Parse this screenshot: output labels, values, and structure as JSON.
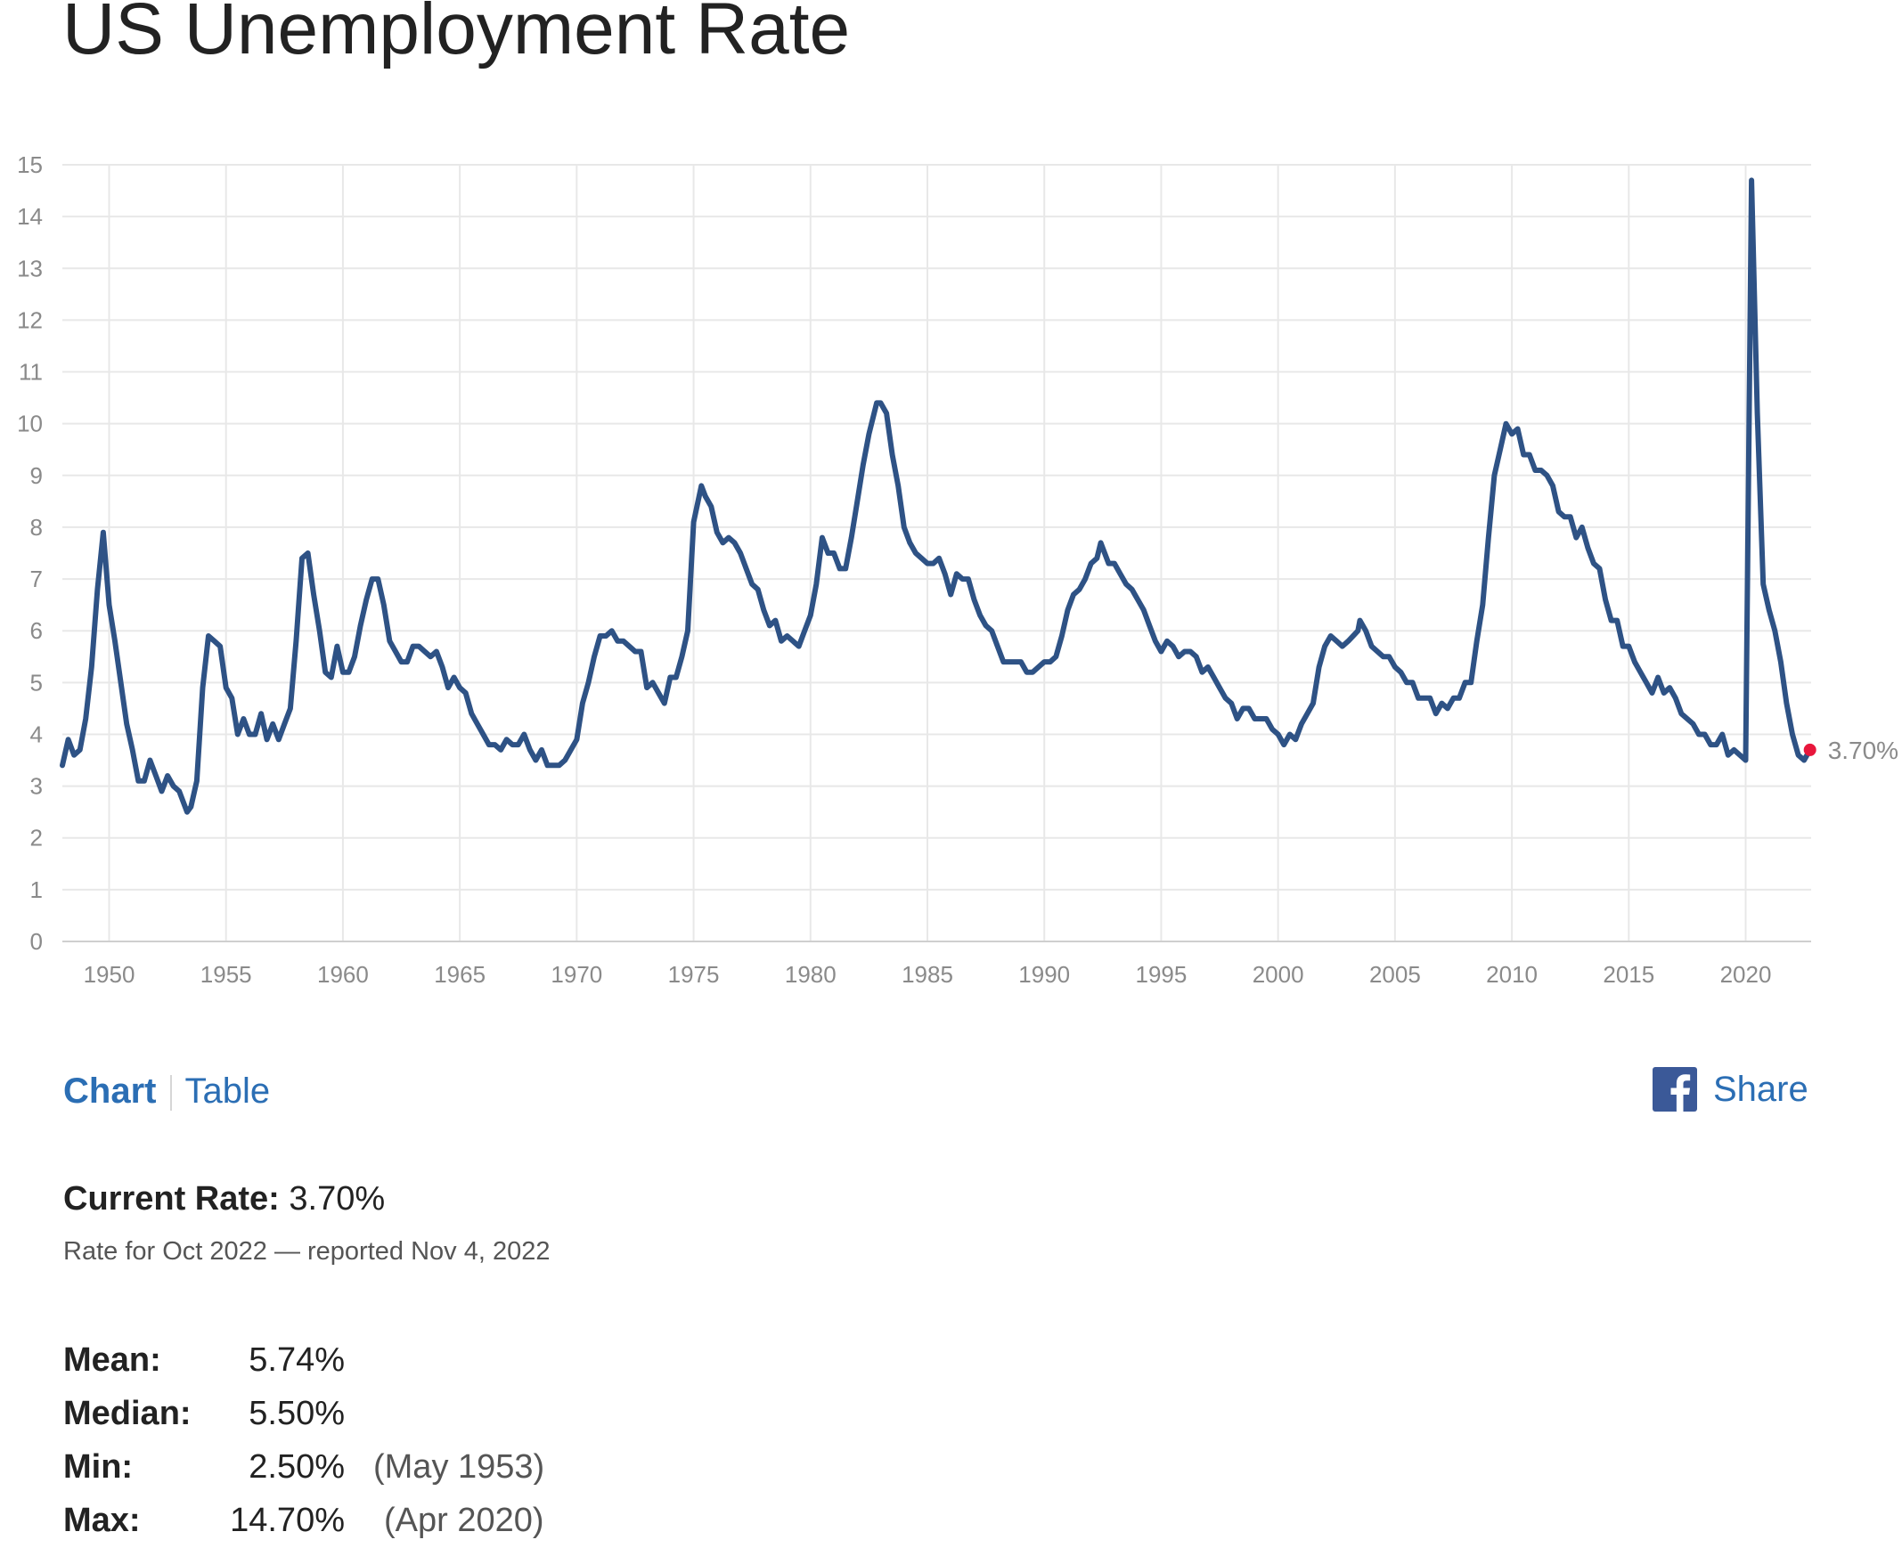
{
  "page": {
    "title": "US Unemployment Rate"
  },
  "chart_data": {
    "type": "line",
    "title": "",
    "xlabel": "",
    "ylabel": "",
    "ylim": [
      0,
      15
    ],
    "xlim": [
      1948.0,
      2022.8
    ],
    "grid": true,
    "y_ticks": [
      "0",
      "1",
      "2",
      "3",
      "4",
      "5",
      "6",
      "7",
      "8",
      "9",
      "10",
      "11",
      "12",
      "13",
      "14",
      "15"
    ],
    "x_ticks": [
      "1950",
      "1955",
      "1960",
      "1965",
      "1970",
      "1975",
      "1980",
      "1985",
      "1990",
      "1995",
      "2000",
      "2005",
      "2010",
      "2015",
      "2020"
    ],
    "end_label": "3.70%",
    "colors": {
      "line": "#2e5285",
      "marker": "#e8173c",
      "grid": "#e8e8e8",
      "tick_text": "#8a8a8a"
    },
    "series": [
      {
        "x": [
          "1948-01",
          "1948-04",
          "1948-07",
          "1948-10",
          "1949-01",
          "1949-04",
          "1949-07",
          "1949-10",
          "1950-01",
          "1950-04",
          "1950-07",
          "1950-10",
          "1951-01",
          "1951-04",
          "1951-07",
          "1951-10",
          "1952-01",
          "1952-04",
          "1952-07",
          "1952-10",
          "1953-01",
          "1953-05",
          "1953-07",
          "1953-10",
          "1954-01",
          "1954-04",
          "1954-07",
          "1954-10",
          "1955-01",
          "1955-04",
          "1955-07",
          "1955-10",
          "1956-01",
          "1956-04",
          "1956-07",
          "1956-10",
          "1957-01",
          "1957-04",
          "1957-07",
          "1957-10",
          "1958-01",
          "1958-04",
          "1958-07",
          "1958-10",
          "1959-01",
          "1959-04",
          "1959-07",
          "1959-10",
          "1960-01",
          "1960-04",
          "1960-07",
          "1960-10",
          "1961-01",
          "1961-04",
          "1961-07",
          "1961-10",
          "1962-01",
          "1962-04",
          "1962-07",
          "1962-10",
          "1963-01",
          "1963-04",
          "1963-07",
          "1963-10",
          "1964-01",
          "1964-04",
          "1964-07",
          "1964-10",
          "1965-01",
          "1965-04",
          "1965-07",
          "1965-10",
          "1966-01",
          "1966-04",
          "1966-07",
          "1966-10",
          "1967-01",
          "1967-04",
          "1967-07",
          "1967-10",
          "1968-01",
          "1968-04",
          "1968-07",
          "1968-10",
          "1969-01",
          "1969-04",
          "1969-07",
          "1969-10",
          "1970-01",
          "1970-04",
          "1970-07",
          "1970-10",
          "1971-01",
          "1971-04",
          "1971-07",
          "1971-10",
          "1972-01",
          "1972-04",
          "1972-07",
          "1972-10",
          "1973-01",
          "1973-04",
          "1973-07",
          "1973-10",
          "1974-01",
          "1974-04",
          "1974-07",
          "1974-10",
          "1975-01",
          "1975-05",
          "1975-07",
          "1975-10",
          "1976-01",
          "1976-04",
          "1976-07",
          "1976-10",
          "1977-01",
          "1977-04",
          "1977-07",
          "1977-10",
          "1978-01",
          "1978-04",
          "1978-07",
          "1978-10",
          "1979-01",
          "1979-04",
          "1979-07",
          "1979-10",
          "1980-01",
          "1980-04",
          "1980-07",
          "1980-10",
          "1981-01",
          "1981-04",
          "1981-07",
          "1981-10",
          "1982-01",
          "1982-04",
          "1982-07",
          "1982-11",
          "1983-01",
          "1983-04",
          "1983-07",
          "1983-10",
          "1984-01",
          "1984-04",
          "1984-07",
          "1984-10",
          "1985-01",
          "1985-04",
          "1985-07",
          "1985-10",
          "1986-01",
          "1986-04",
          "1986-07",
          "1986-10",
          "1987-01",
          "1987-04",
          "1987-07",
          "1987-10",
          "1988-01",
          "1988-04",
          "1988-07",
          "1988-10",
          "1989-01",
          "1989-04",
          "1989-07",
          "1989-10",
          "1990-01",
          "1990-04",
          "1990-07",
          "1990-10",
          "1991-01",
          "1991-04",
          "1991-07",
          "1991-10",
          "1992-01",
          "1992-04",
          "1992-06",
          "1992-10",
          "1993-01",
          "1993-04",
          "1993-07",
          "1993-10",
          "1994-01",
          "1994-04",
          "1994-07",
          "1994-10",
          "1995-01",
          "1995-04",
          "1995-07",
          "1995-10",
          "1996-01",
          "1996-04",
          "1996-07",
          "1996-10",
          "1997-01",
          "1997-04",
          "1997-07",
          "1997-10",
          "1998-01",
          "1998-04",
          "1998-07",
          "1998-10",
          "1999-01",
          "1999-04",
          "1999-07",
          "1999-10",
          "2000-01",
          "2000-04",
          "2000-07",
          "2000-10",
          "2001-01",
          "2001-04",
          "2001-07",
          "2001-10",
          "2002-01",
          "2002-04",
          "2002-07",
          "2002-10",
          "2003-01",
          "2003-06",
          "2003-07",
          "2003-10",
          "2004-01",
          "2004-04",
          "2004-07",
          "2004-10",
          "2005-01",
          "2005-04",
          "2005-07",
          "2005-10",
          "2006-01",
          "2006-04",
          "2006-07",
          "2006-10",
          "2007-01",
          "2007-04",
          "2007-07",
          "2007-10",
          "2008-01",
          "2008-04",
          "2008-07",
          "2008-10",
          "2009-01",
          "2009-04",
          "2009-07",
          "2009-10",
          "2010-01",
          "2010-04",
          "2010-07",
          "2010-10",
          "2011-01",
          "2011-04",
          "2011-07",
          "2011-10",
          "2012-01",
          "2012-04",
          "2012-07",
          "2012-10",
          "2013-01",
          "2013-04",
          "2013-07",
          "2013-10",
          "2014-01",
          "2014-04",
          "2014-07",
          "2014-10",
          "2015-01",
          "2015-04",
          "2015-07",
          "2015-10",
          "2016-01",
          "2016-04",
          "2016-07",
          "2016-10",
          "2017-01",
          "2017-04",
          "2017-07",
          "2017-10",
          "2018-01",
          "2018-04",
          "2018-07",
          "2018-10",
          "2019-01",
          "2019-04",
          "2019-07",
          "2019-10",
          "2020-01",
          "2020-04",
          "2020-07",
          "2020-10",
          "2021-01",
          "2021-04",
          "2021-07",
          "2021-10",
          "2022-01",
          "2022-04",
          "2022-07",
          "2022-10"
        ],
        "y": [
          3.4,
          3.9,
          3.6,
          3.7,
          4.3,
          5.3,
          6.8,
          7.9,
          6.5,
          5.8,
          5.0,
          4.2,
          3.7,
          3.1,
          3.1,
          3.5,
          3.2,
          2.9,
          3.2,
          3.0,
          2.9,
          2.5,
          2.6,
          3.1,
          4.9,
          5.9,
          5.8,
          5.7,
          4.9,
          4.7,
          4.0,
          4.3,
          4.0,
          4.0,
          4.4,
          3.9,
          4.2,
          3.9,
          4.2,
          4.5,
          5.8,
          7.4,
          7.5,
          6.7,
          6.0,
          5.2,
          5.1,
          5.7,
          5.2,
          5.2,
          5.5,
          6.1,
          6.6,
          7.0,
          7.0,
          6.5,
          5.8,
          5.6,
          5.4,
          5.4,
          5.7,
          5.7,
          5.6,
          5.5,
          5.6,
          5.3,
          4.9,
          5.1,
          4.9,
          4.8,
          4.4,
          4.2,
          4.0,
          3.8,
          3.8,
          3.7,
          3.9,
          3.8,
          3.8,
          4.0,
          3.7,
          3.5,
          3.7,
          3.4,
          3.4,
          3.4,
          3.5,
          3.7,
          3.9,
          4.6,
          5.0,
          5.5,
          5.9,
          5.9,
          6.0,
          5.8,
          5.8,
          5.7,
          5.6,
          5.6,
          4.9,
          5.0,
          4.8,
          4.6,
          5.1,
          5.1,
          5.5,
          6.0,
          8.1,
          8.8,
          8.6,
          8.4,
          7.9,
          7.7,
          7.8,
          7.7,
          7.5,
          7.2,
          6.9,
          6.8,
          6.4,
          6.1,
          6.2,
          5.8,
          5.9,
          5.8,
          5.7,
          6.0,
          6.3,
          6.9,
          7.8,
          7.5,
          7.5,
          7.2,
          7.2,
          7.8,
          8.5,
          9.2,
          9.8,
          10.4,
          10.4,
          10.2,
          9.4,
          8.8,
          8.0,
          7.7,
          7.5,
          7.4,
          7.3,
          7.3,
          7.4,
          7.1,
          6.7,
          7.1,
          7.0,
          7.0,
          6.6,
          6.3,
          6.1,
          6.0,
          5.7,
          5.4,
          5.4,
          5.4,
          5.4,
          5.2,
          5.2,
          5.3,
          5.4,
          5.4,
          5.5,
          5.9,
          6.4,
          6.7,
          6.8,
          7.0,
          7.3,
          7.4,
          7.7,
          7.3,
          7.3,
          7.1,
          6.9,
          6.8,
          6.6,
          6.4,
          6.1,
          5.8,
          5.6,
          5.8,
          5.7,
          5.5,
          5.6,
          5.6,
          5.5,
          5.2,
          5.3,
          5.1,
          4.9,
          4.7,
          4.6,
          4.3,
          4.5,
          4.5,
          4.3,
          4.3,
          4.3,
          4.1,
          4.0,
          3.8,
          4.0,
          3.9,
          4.2,
          4.4,
          4.6,
          5.3,
          5.7,
          5.9,
          5.8,
          5.7,
          5.8,
          6.0,
          6.2,
          6.0,
          5.7,
          5.6,
          5.5,
          5.5,
          5.3,
          5.2,
          5.0,
          5.0,
          4.7,
          4.7,
          4.7,
          4.4,
          4.6,
          4.5,
          4.7,
          4.7,
          5.0,
          5.0,
          5.8,
          6.5,
          7.8,
          9.0,
          9.5,
          10.0,
          9.8,
          9.9,
          9.4,
          9.4,
          9.1,
          9.1,
          9.0,
          8.8,
          8.3,
          8.2,
          8.2,
          7.8,
          8.0,
          7.6,
          7.3,
          7.2,
          6.6,
          6.2,
          6.2,
          5.7,
          5.7,
          5.4,
          5.2,
          5.0,
          4.8,
          5.1,
          4.8,
          4.9,
          4.7,
          4.4,
          4.3,
          4.2,
          4.0,
          4.0,
          3.8,
          3.8,
          4.0,
          3.6,
          3.7,
          3.6,
          3.5,
          14.7,
          10.2,
          6.9,
          6.4,
          6.0,
          5.4,
          4.6,
          4.0,
          3.6,
          3.5,
          3.7
        ]
      }
    ]
  },
  "tabs": {
    "chart_label": "Chart",
    "table_label": "Table"
  },
  "share": {
    "label": "Share",
    "icon": "facebook-icon",
    "icon_color": "#3b5998"
  },
  "current": {
    "label": "Current Rate:",
    "value": "3.70%",
    "subtext": "Rate for Oct 2022 — reported Nov 4, 2022"
  },
  "stats": {
    "mean": {
      "label": "Mean:",
      "value": "5.74%"
    },
    "median": {
      "label": "Median:",
      "value": "5.50%"
    },
    "min": {
      "label": "Min:",
      "value": "2.50%",
      "date": "(May 1953)"
    },
    "max": {
      "label": "Max:",
      "value": "14.70%",
      "date": "(Apr 2020)"
    }
  }
}
